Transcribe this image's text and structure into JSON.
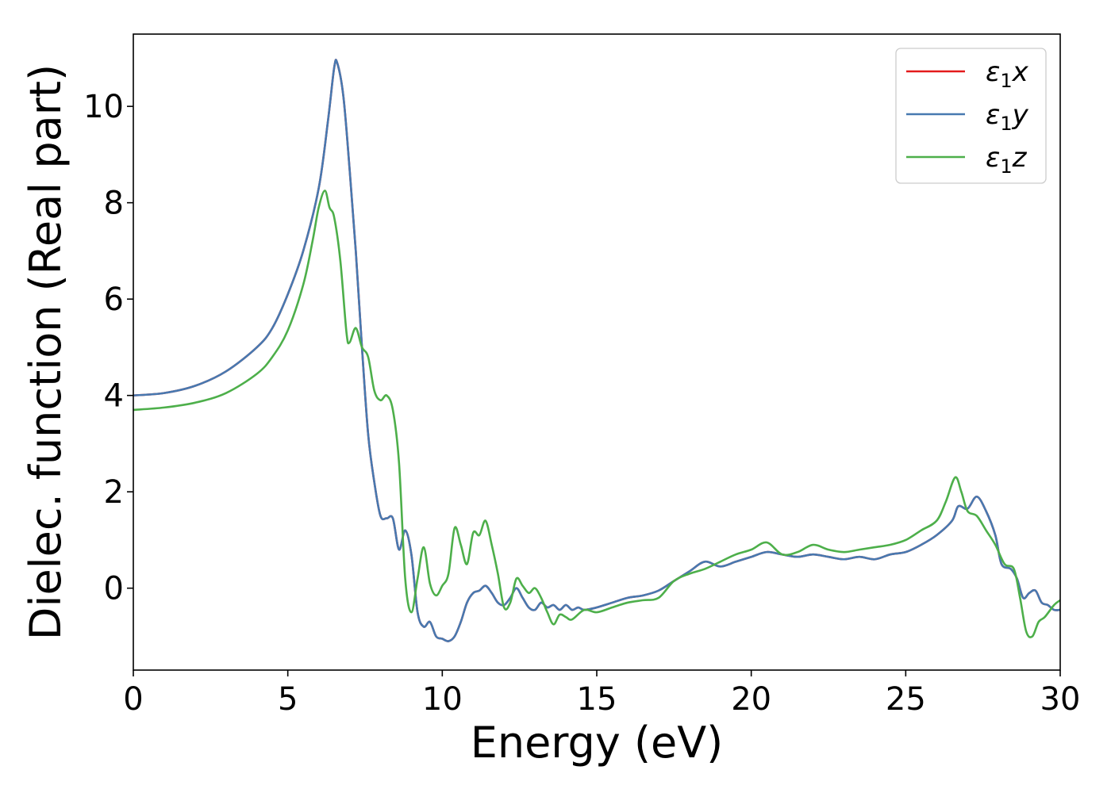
{
  "chart_data": {
    "type": "line",
    "title": "",
    "xlabel": "Energy (eV)",
    "ylabel": "Dielec. function (Real part)",
    "xlim": [
      0,
      30
    ],
    "ylim": [
      -1.7,
      11.5
    ],
    "xticks": [
      0,
      5,
      10,
      15,
      20,
      25,
      30
    ],
    "yticks": [
      0,
      2,
      4,
      6,
      8,
      10
    ],
    "grid": false,
    "legend_position": "top-right",
    "series": [
      {
        "name": "ε1x",
        "legend": {
          "base": "ε",
          "sub": "1",
          "comp": "x"
        },
        "color": "#e41a1c",
        "points": [
          [
            0,
            4.0
          ],
          [
            1,
            4.05
          ],
          [
            2,
            4.2
          ],
          [
            3,
            4.5
          ],
          [
            4,
            5.0
          ],
          [
            4.5,
            5.4
          ],
          [
            5,
            6.1
          ],
          [
            5.5,
            7.0
          ],
          [
            6,
            8.3
          ],
          [
            6.3,
            9.7
          ],
          [
            6.5,
            10.8
          ],
          [
            6.6,
            10.9
          ],
          [
            6.8,
            10.2
          ],
          [
            7,
            8.7
          ],
          [
            7.2,
            7.0
          ],
          [
            7.4,
            5.0
          ],
          [
            7.6,
            3.2
          ],
          [
            7.8,
            2.2
          ],
          [
            8,
            1.5
          ],
          [
            8.2,
            1.45
          ],
          [
            8.4,
            1.45
          ],
          [
            8.6,
            0.8
          ],
          [
            8.8,
            1.2
          ],
          [
            9,
            0.7
          ],
          [
            9.2,
            -0.5
          ],
          [
            9.4,
            -0.8
          ],
          [
            9.6,
            -0.7
          ],
          [
            9.8,
            -1.0
          ],
          [
            10,
            -1.05
          ],
          [
            10.2,
            -1.1
          ],
          [
            10.4,
            -1.0
          ],
          [
            10.6,
            -0.7
          ],
          [
            10.8,
            -0.3
          ],
          [
            11,
            -0.1
          ],
          [
            11.2,
            -0.05
          ],
          [
            11.4,
            0.05
          ],
          [
            11.6,
            -0.1
          ],
          [
            11.8,
            -0.3
          ],
          [
            12,
            -0.35
          ],
          [
            12.2,
            -0.2
          ],
          [
            12.4,
            0.0
          ],
          [
            12.6,
            -0.2
          ],
          [
            12.8,
            -0.4
          ],
          [
            13,
            -0.45
          ],
          [
            13.2,
            -0.3
          ],
          [
            13.4,
            -0.4
          ],
          [
            13.6,
            -0.35
          ],
          [
            13.8,
            -0.45
          ],
          [
            14,
            -0.35
          ],
          [
            14.2,
            -0.45
          ],
          [
            14.4,
            -0.4
          ],
          [
            14.6,
            -0.45
          ],
          [
            15,
            -0.4
          ],
          [
            15.5,
            -0.3
          ],
          [
            16,
            -0.2
          ],
          [
            16.5,
            -0.15
          ],
          [
            17,
            -0.05
          ],
          [
            17.5,
            0.15
          ],
          [
            18,
            0.35
          ],
          [
            18.5,
            0.55
          ],
          [
            19,
            0.45
          ],
          [
            19.5,
            0.55
          ],
          [
            20,
            0.65
          ],
          [
            20.5,
            0.75
          ],
          [
            21,
            0.7
          ],
          [
            21.5,
            0.65
          ],
          [
            22,
            0.7
          ],
          [
            22.5,
            0.65
          ],
          [
            23,
            0.6
          ],
          [
            23.5,
            0.65
          ],
          [
            24,
            0.6
          ],
          [
            24.5,
            0.7
          ],
          [
            25,
            0.75
          ],
          [
            25.5,
            0.9
          ],
          [
            26,
            1.1
          ],
          [
            26.5,
            1.4
          ],
          [
            26.7,
            1.7
          ],
          [
            27,
            1.65
          ],
          [
            27.3,
            1.9
          ],
          [
            27.6,
            1.6
          ],
          [
            27.9,
            1.1
          ],
          [
            28.1,
            0.5
          ],
          [
            28.4,
            0.4
          ],
          [
            28.6,
            0.2
          ],
          [
            28.8,
            -0.2
          ],
          [
            29,
            -0.1
          ],
          [
            29.2,
            -0.05
          ],
          [
            29.4,
            -0.3
          ],
          [
            29.6,
            -0.35
          ],
          [
            29.8,
            -0.45
          ],
          [
            30,
            -0.45
          ]
        ]
      },
      {
        "name": "ε1y",
        "legend": {
          "base": "ε",
          "sub": "1",
          "comp": "y"
        },
        "color": "#4779b0",
        "points": [
          [
            0,
            4.0
          ],
          [
            1,
            4.05
          ],
          [
            2,
            4.2
          ],
          [
            3,
            4.5
          ],
          [
            4,
            5.0
          ],
          [
            4.5,
            5.4
          ],
          [
            5,
            6.1
          ],
          [
            5.5,
            7.0
          ],
          [
            6,
            8.3
          ],
          [
            6.3,
            9.7
          ],
          [
            6.5,
            10.8
          ],
          [
            6.6,
            10.9
          ],
          [
            6.8,
            10.2
          ],
          [
            7,
            8.7
          ],
          [
            7.2,
            7.0
          ],
          [
            7.4,
            5.0
          ],
          [
            7.6,
            3.2
          ],
          [
            7.8,
            2.2
          ],
          [
            8,
            1.5
          ],
          [
            8.2,
            1.45
          ],
          [
            8.4,
            1.45
          ],
          [
            8.6,
            0.8
          ],
          [
            8.8,
            1.2
          ],
          [
            9,
            0.7
          ],
          [
            9.2,
            -0.5
          ],
          [
            9.4,
            -0.8
          ],
          [
            9.6,
            -0.7
          ],
          [
            9.8,
            -1.0
          ],
          [
            10,
            -1.05
          ],
          [
            10.2,
            -1.1
          ],
          [
            10.4,
            -1.0
          ],
          [
            10.6,
            -0.7
          ],
          [
            10.8,
            -0.3
          ],
          [
            11,
            -0.1
          ],
          [
            11.2,
            -0.05
          ],
          [
            11.4,
            0.05
          ],
          [
            11.6,
            -0.1
          ],
          [
            11.8,
            -0.3
          ],
          [
            12,
            -0.35
          ],
          [
            12.2,
            -0.2
          ],
          [
            12.4,
            0.0
          ],
          [
            12.6,
            -0.2
          ],
          [
            12.8,
            -0.4
          ],
          [
            13,
            -0.45
          ],
          [
            13.2,
            -0.3
          ],
          [
            13.4,
            -0.4
          ],
          [
            13.6,
            -0.35
          ],
          [
            13.8,
            -0.45
          ],
          [
            14,
            -0.35
          ],
          [
            14.2,
            -0.45
          ],
          [
            14.4,
            -0.4
          ],
          [
            14.6,
            -0.45
          ],
          [
            15,
            -0.4
          ],
          [
            15.5,
            -0.3
          ],
          [
            16,
            -0.2
          ],
          [
            16.5,
            -0.15
          ],
          [
            17,
            -0.05
          ],
          [
            17.5,
            0.15
          ],
          [
            18,
            0.35
          ],
          [
            18.5,
            0.55
          ],
          [
            19,
            0.45
          ],
          [
            19.5,
            0.55
          ],
          [
            20,
            0.65
          ],
          [
            20.5,
            0.75
          ],
          [
            21,
            0.7
          ],
          [
            21.5,
            0.65
          ],
          [
            22,
            0.7
          ],
          [
            22.5,
            0.65
          ],
          [
            23,
            0.6
          ],
          [
            23.5,
            0.65
          ],
          [
            24,
            0.6
          ],
          [
            24.5,
            0.7
          ],
          [
            25,
            0.75
          ],
          [
            25.5,
            0.9
          ],
          [
            26,
            1.1
          ],
          [
            26.5,
            1.4
          ],
          [
            26.7,
            1.7
          ],
          [
            27,
            1.65
          ],
          [
            27.3,
            1.9
          ],
          [
            27.6,
            1.6
          ],
          [
            27.9,
            1.1
          ],
          [
            28.1,
            0.5
          ],
          [
            28.4,
            0.4
          ],
          [
            28.6,
            0.2
          ],
          [
            28.8,
            -0.2
          ],
          [
            29,
            -0.1
          ],
          [
            29.2,
            -0.05
          ],
          [
            29.4,
            -0.3
          ],
          [
            29.6,
            -0.35
          ],
          [
            29.8,
            -0.45
          ],
          [
            30,
            -0.45
          ]
        ]
      },
      {
        "name": "ε1z",
        "legend": {
          "base": "ε",
          "sub": "1",
          "comp": "z"
        },
        "color": "#4daf4a",
        "points": [
          [
            0,
            3.7
          ],
          [
            1,
            3.75
          ],
          [
            2,
            3.85
          ],
          [
            3,
            4.05
          ],
          [
            4,
            4.45
          ],
          [
            4.5,
            4.8
          ],
          [
            5,
            5.35
          ],
          [
            5.5,
            6.3
          ],
          [
            5.8,
            7.2
          ],
          [
            6.0,
            7.9
          ],
          [
            6.2,
            8.25
          ],
          [
            6.35,
            7.9
          ],
          [
            6.5,
            7.7
          ],
          [
            6.7,
            6.8
          ],
          [
            6.9,
            5.3
          ],
          [
            7.0,
            5.1
          ],
          [
            7.2,
            5.4
          ],
          [
            7.4,
            5.0
          ],
          [
            7.6,
            4.8
          ],
          [
            7.8,
            4.1
          ],
          [
            8.0,
            3.9
          ],
          [
            8.2,
            4.0
          ],
          [
            8.4,
            3.7
          ],
          [
            8.6,
            2.6
          ],
          [
            8.8,
            0.2
          ],
          [
            9.0,
            -0.5
          ],
          [
            9.2,
            0.2
          ],
          [
            9.4,
            0.85
          ],
          [
            9.6,
            0.1
          ],
          [
            9.8,
            -0.15
          ],
          [
            10.0,
            0.05
          ],
          [
            10.2,
            0.3
          ],
          [
            10.4,
            1.25
          ],
          [
            10.6,
            0.9
          ],
          [
            10.8,
            0.5
          ],
          [
            11.0,
            1.15
          ],
          [
            11.2,
            1.1
          ],
          [
            11.4,
            1.4
          ],
          [
            11.6,
            0.9
          ],
          [
            11.8,
            0.3
          ],
          [
            12.0,
            -0.4
          ],
          [
            12.2,
            -0.3
          ],
          [
            12.4,
            0.2
          ],
          [
            12.6,
            0.05
          ],
          [
            12.8,
            -0.1
          ],
          [
            13.0,
            0.0
          ],
          [
            13.2,
            -0.2
          ],
          [
            13.4,
            -0.5
          ],
          [
            13.6,
            -0.75
          ],
          [
            13.8,
            -0.55
          ],
          [
            14.0,
            -0.6
          ],
          [
            14.2,
            -0.65
          ],
          [
            14.6,
            -0.45
          ],
          [
            15.0,
            -0.5
          ],
          [
            15.5,
            -0.4
          ],
          [
            16.0,
            -0.3
          ],
          [
            16.5,
            -0.25
          ],
          [
            17.0,
            -0.2
          ],
          [
            17.5,
            0.15
          ],
          [
            18.0,
            0.3
          ],
          [
            18.5,
            0.4
          ],
          [
            19.0,
            0.55
          ],
          [
            19.5,
            0.7
          ],
          [
            20.0,
            0.8
          ],
          [
            20.5,
            0.95
          ],
          [
            21.0,
            0.7
          ],
          [
            21.5,
            0.75
          ],
          [
            22.0,
            0.9
          ],
          [
            22.5,
            0.8
          ],
          [
            23.0,
            0.75
          ],
          [
            23.5,
            0.8
          ],
          [
            24.0,
            0.85
          ],
          [
            24.5,
            0.9
          ],
          [
            25.0,
            1.0
          ],
          [
            25.5,
            1.2
          ],
          [
            26.0,
            1.4
          ],
          [
            26.3,
            1.8
          ],
          [
            26.6,
            2.3
          ],
          [
            26.8,
            2.0
          ],
          [
            27.0,
            1.6
          ],
          [
            27.3,
            1.5
          ],
          [
            27.6,
            1.2
          ],
          [
            27.9,
            0.9
          ],
          [
            28.2,
            0.5
          ],
          [
            28.5,
            0.4
          ],
          [
            28.7,
            -0.2
          ],
          [
            28.9,
            -0.9
          ],
          [
            29.1,
            -1.0
          ],
          [
            29.3,
            -0.7
          ],
          [
            29.5,
            -0.6
          ],
          [
            29.8,
            -0.35
          ],
          [
            30,
            -0.25
          ]
        ]
      }
    ]
  }
}
